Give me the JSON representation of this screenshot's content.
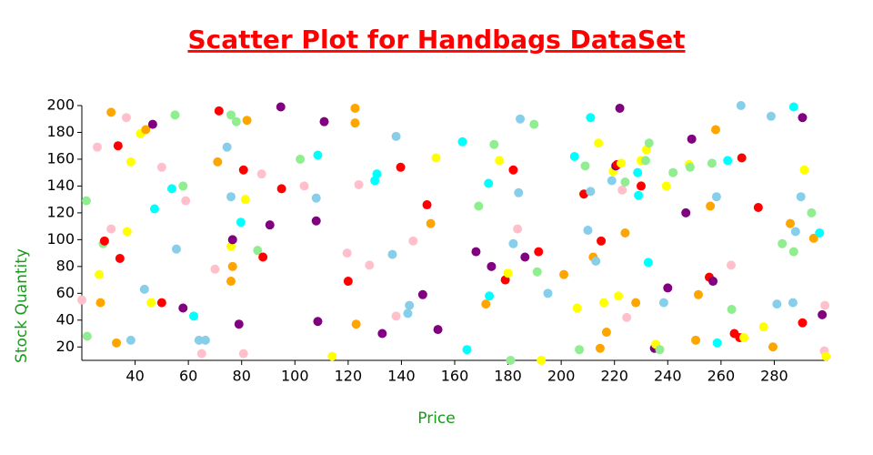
{
  "chart_data": {
    "type": "scatter",
    "title": "Scatter Plot for Handbags DataSet",
    "x_label": "Price",
    "y_label": "Stock Quantity",
    "xlim": [
      20,
      300
    ],
    "xticks": [
      40,
      60,
      80,
      100,
      120,
      140,
      160,
      180,
      200,
      220,
      240,
      260,
      280
    ],
    "ylim": [
      10,
      200
    ],
    "yticks": [
      20,
      40,
      60,
      80,
      100,
      120,
      140,
      160,
      180,
      200
    ],
    "grid": false,
    "x": [
      20,
      21.7,
      22,
      25.8,
      26.5,
      27,
      28,
      28.5,
      31,
      31,
      33,
      33.6,
      34.3,
      36.7,
      37,
      38.4,
      38.4,
      42,
      43.5,
      44,
      46,
      46.6,
      47.3,
      50,
      50,
      53.8,
      55,
      55.5,
      58,
      58,
      59,
      62,
      64,
      65,
      66.4,
      70,
      71,
      71.5,
      74.5,
      76,
      76,
      76,
      76,
      76.6,
      76.6,
      78,
      79,
      79.7,
      80.7,
      80.7,
      81.4,
      82,
      86,
      87.5,
      88,
      90.6,
      94.7,
      95,
      102,
      103.5,
      108,
      108,
      108.6,
      108.6,
      111,
      114,
      119.6,
      120,
      122.6,
      122.6,
      123,
      124,
      128,
      130,
      130.8,
      132.8,
      136.6,
      138,
      138,
      139.7,
      143,
      142.4,
      144.4,
      148,
      149.6,
      151,
      153,
      153.7,
      162.9,
      164.6,
      168,
      169,
      171.7,
      172.7,
      173,
      173.8,
      174.8,
      176.8,
      179,
      180,
      181,
      182,
      182,
      183.6,
      184,
      184.6,
      186.4,
      189.8,
      191,
      191.5,
      192.5,
      195,
      201,
      205,
      206,
      206.8,
      208.5,
      209,
      210,
      211,
      211,
      212,
      213,
      214,
      214.6,
      215,
      216,
      217,
      219,
      219.5,
      220.5,
      221,
      221.5,
      222,
      222.5,
      222.9,
      224,
      224,
      224.6,
      228,
      228.7,
      229,
      230,
      230,
      231.7,
      232,
      232.7,
      233,
      235,
      235.5,
      237,
      238.5,
      239.5,
      240,
      242,
      246.8,
      248,
      248.4,
      249,
      250.5,
      251.5,
      255.6,
      256,
      256.6,
      257,
      258,
      258.3,
      258.6,
      262.5,
      263.8,
      264,
      265,
      267,
      267.5,
      267.8,
      268.6,
      274,
      276,
      278.8,
      279.5,
      281,
      283,
      286,
      287,
      287.3,
      287.3,
      288,
      290,
      290.6,
      290.6,
      291.3,
      294,
      294.8,
      297,
      298,
      298.8,
      299,
      299.4
    ],
    "values": [
      55,
      129,
      28,
      169,
      74,
      53,
      97,
      99,
      108,
      195,
      23,
      170,
      86,
      191,
      106,
      158,
      25,
      179,
      63,
      182,
      53,
      186,
      123,
      53,
      154,
      138,
      193,
      93,
      49,
      140,
      129,
      43,
      25,
      15,
      25,
      78,
      158,
      196,
      169,
      69,
      193,
      132,
      95,
      100,
      80,
      188,
      37,
      113,
      15,
      152,
      130,
      189,
      92,
      149,
      87,
      111,
      199,
      138,
      160,
      140,
      131,
      114,
      163,
      39,
      188,
      13,
      90,
      69,
      198,
      187,
      37,
      141,
      81,
      144,
      149,
      30,
      89,
      177,
      43,
      154,
      51,
      45,
      99,
      59,
      126,
      112,
      161,
      33,
      173,
      18,
      91,
      125,
      52,
      142,
      58,
      80,
      171,
      159,
      70,
      75,
      10,
      97,
      152,
      108,
      135,
      190,
      87,
      186,
      76,
      91,
      10,
      60,
      74,
      162,
      49,
      18,
      134,
      155,
      107,
      136,
      191,
      87,
      84,
      172,
      19,
      99,
      53,
      31,
      144,
      151,
      155,
      156,
      58,
      198,
      157,
      137,
      143,
      105,
      42,
      53,
      150,
      133,
      140,
      159,
      159,
      167,
      83,
      172,
      19,
      22,
      18,
      53,
      140,
      64,
      150,
      120,
      156,
      154,
      175,
      25,
      59,
      72,
      125,
      157,
      69,
      182,
      132,
      23,
      159,
      81,
      48,
      30,
      27,
      200,
      161,
      27,
      124,
      35,
      192,
      20,
      52,
      97,
      112,
      53,
      199,
      91,
      106,
      132,
      38,
      191,
      152,
      120,
      101,
      105,
      44,
      17,
      51,
      13
    ],
    "colors": [
      "pink",
      "lightgreen",
      "lightgreen",
      "pink",
      "yellow",
      "orange",
      "lightgreen",
      "red",
      "pink",
      "orange",
      "orange",
      "red",
      "red",
      "pink",
      "yellow",
      "yellow",
      "skyblue",
      "yellow",
      "skyblue",
      "orange",
      "yellow",
      "purple",
      "cyan",
      "red",
      "pink",
      "cyan",
      "lightgreen",
      "skyblue",
      "purple",
      "lightgreen",
      "pink",
      "cyan",
      "skyblue",
      "pink",
      "skyblue",
      "pink",
      "orange",
      "red",
      "skyblue",
      "orange",
      "lightgreen",
      "skyblue",
      "yellow",
      "purple",
      "orange",
      "lightgreen",
      "purple",
      "cyan",
      "pink",
      "red",
      "yellow",
      "orange",
      "lightgreen",
      "pink",
      "red",
      "purple",
      "purple",
      "red",
      "lightgreen",
      "pink",
      "skyblue",
      "purple",
      "cyan",
      "purple",
      "purple",
      "yellow",
      "pink",
      "red",
      "orange",
      "orange",
      "orange",
      "pink",
      "pink",
      "cyan",
      "cyan",
      "purple",
      "skyblue",
      "skyblue",
      "pink",
      "red",
      "skyblue",
      "skyblue",
      "pink",
      "purple",
      "red",
      "orange",
      "yellow",
      "purple",
      "cyan",
      "cyan",
      "purple",
      "lightgreen",
      "orange",
      "cyan",
      "cyan",
      "purple",
      "lightgreen",
      "yellow",
      "red",
      "yellow",
      "lightgreen",
      "skyblue",
      "red",
      "pink",
      "skyblue",
      "skyblue",
      "purple",
      "lightgreen",
      "lightgreen",
      "red",
      "yellow",
      "skyblue",
      "orange",
      "cyan",
      "yellow",
      "lightgreen",
      "red",
      "lightgreen",
      "skyblue",
      "skyblue",
      "cyan",
      "orange",
      "skyblue",
      "yellow",
      "orange",
      "red",
      "yellow",
      "orange",
      "skyblue",
      "yellow",
      "purple",
      "red",
      "yellow",
      "purple",
      "yellow",
      "pink",
      "lightgreen",
      "orange",
      "pink",
      "orange",
      "cyan",
      "cyan",
      "red",
      "yellow",
      "lightgreen",
      "yellow",
      "cyan",
      "lightgreen",
      "purple",
      "yellow",
      "lightgreen",
      "skyblue",
      "yellow",
      "purple",
      "lightgreen",
      "purple",
      "yellow",
      "lightgreen",
      "purple",
      "orange",
      "orange",
      "red",
      "orange",
      "lightgreen",
      "purple",
      "orange",
      "skyblue",
      "cyan",
      "cyan",
      "pink",
      "lightgreen",
      "red",
      "red",
      "skyblue",
      "red",
      "yellow",
      "red",
      "yellow",
      "skyblue",
      "orange",
      "skyblue",
      "lightgreen",
      "orange",
      "skyblue",
      "cyan",
      "lightgreen",
      "skyblue",
      "skyblue",
      "red",
      "purple",
      "yellow",
      "lightgreen",
      "orange",
      "cyan",
      "purple",
      "pink",
      "pink",
      "yellow"
    ]
  }
}
